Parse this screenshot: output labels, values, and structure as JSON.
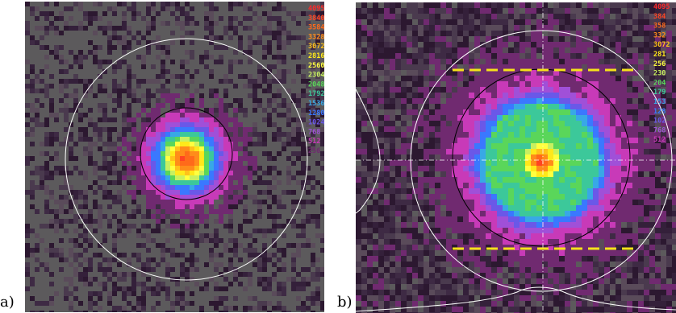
{
  "panels": [
    {
      "label": "a)",
      "scale_visible": [
        "4095",
        "3840",
        "3584",
        "3328",
        "3072",
        "2816",
        "2560",
        "2304",
        "2048",
        "1792",
        "1536",
        "1280",
        "1024",
        "768",
        "512",
        "256"
      ],
      "scale_partial": false,
      "guides": {
        "crosshair": false,
        "dashed_lines": false,
        "profiles": false
      }
    },
    {
      "label": "b)",
      "scale_visible": [
        "4095",
        "384",
        "358",
        "332",
        "3072",
        "281",
        "256",
        "230",
        "204",
        "179",
        "153",
        "128",
        "102",
        "768",
        "512"
      ],
      "scale_partial": true,
      "guides": {
        "crosshair": true,
        "dashed_lines": true,
        "profiles": true
      }
    }
  ],
  "colormap": {
    "4095": "#ff2a2a",
    "3840": "#ff4422",
    "3584": "#ff6a1a",
    "3328": "#ff8c1a",
    "3072": "#ffc21a",
    "2816": "#ffe81a",
    "2560": "#ffff40",
    "2304": "#c8f060",
    "2048": "#5ad65a",
    "1792": "#3cc89a",
    "1536": "#38a8e6",
    "1280": "#3a78ff",
    "1024": "#6a58e8",
    "768": "#a050d8",
    "512": "#c83ab8",
    "256": "#702a70"
  },
  "overlay_colors": {
    "outer_circle": "#ffffff",
    "inner_circle": "#000000",
    "dashes": "#f5e21a"
  }
}
